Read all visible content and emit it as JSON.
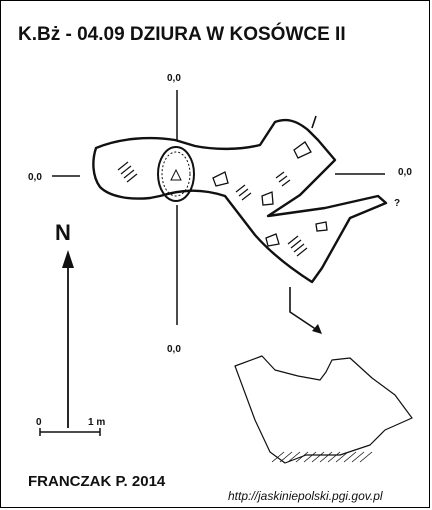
{
  "title": "K.Bż - 04.09  DZIURA W KOSÓWCE II",
  "coords": {
    "top": "0,0",
    "left": "0,0",
    "right": "0,0",
    "bottom": "0,0"
  },
  "north_label": "N",
  "scale": {
    "zero": "0",
    "one": "1 m"
  },
  "question_mark": "?",
  "author": "FRANCZAK P. 2014",
  "source_url": "http://jaskiniepolski.pgi.gov.pl",
  "colors": {
    "line": "#111111",
    "background": "#ffffff"
  }
}
